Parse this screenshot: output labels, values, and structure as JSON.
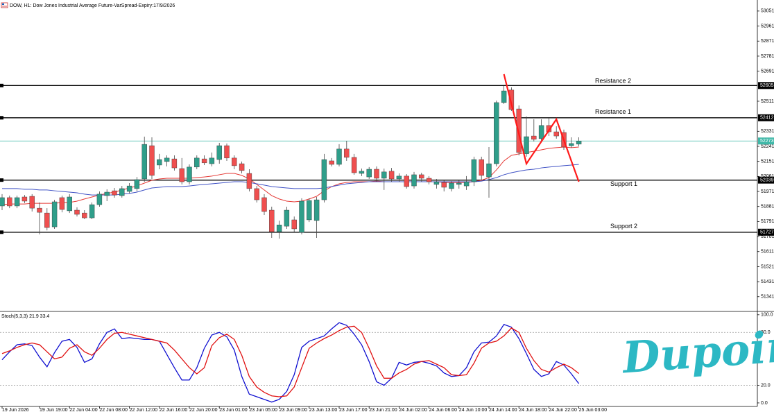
{
  "chart_data": [
    {
      "type": "candlestick",
      "title": "DOW, H1: Dow Jones Industrial Average Future-VarSpread-Expiry:17/9/2026",
      "categories": [
        "19 Jun 2026",
        null,
        null,
        null,
        null,
        "19 Jun 19:00",
        null,
        null,
        null,
        "22 Jun 04:00",
        null,
        null,
        null,
        "22 Jun 08:00",
        null,
        null,
        null,
        "22 Jun 12:00",
        null,
        null,
        null,
        "22 Jun 16:00",
        null,
        null,
        null,
        "22 Jun 20:00",
        null,
        null,
        null,
        "23 Jun 01:00",
        null,
        null,
        null,
        "23 Jun 05:00",
        null,
        null,
        null,
        "23 Jun 09:00",
        null,
        null,
        null,
        "23 Jun 13:00",
        null,
        null,
        null,
        "23 Jun 17:00",
        null,
        null,
        null,
        "23 Jun 21:00",
        null,
        null,
        null,
        "24 Jun 02:00",
        null,
        null,
        null,
        "24 Jun 06:00",
        null,
        null,
        null,
        "24 Jun 10:00",
        null,
        null,
        null,
        "24 Jun 14:00",
        null,
        null,
        null,
        "24 Jun 18:00",
        null,
        null,
        null,
        "24 Jun 22:00",
        null,
        null,
        null,
        "25 Jun 03:00"
      ],
      "open": [
        51884,
        51934,
        51884,
        51938,
        51942,
        51871,
        51842,
        51759,
        51934,
        51855,
        51859,
        51842,
        51813,
        51892,
        51946,
        51975,
        51946,
        51971,
        51988,
        52046,
        52245,
        52129,
        52150,
        52166,
        52108,
        52029,
        52117,
        52166,
        52137,
        52162,
        52245,
        52171,
        52137,
        52079,
        51988,
        51934,
        51859,
        51730,
        51763,
        51801,
        51726,
        51801,
        51797,
        51921,
        52154,
        52133,
        52225,
        52175,
        52079,
        52058,
        52104,
        52050,
        52092,
        52046,
        52063,
        52004,
        52071,
        52050,
        52013,
        52025,
        51988,
        52013,
        52004,
        52029,
        52162,
        52058,
        52137,
        52503,
        52578,
        52465,
        52196,
        52303,
        52287,
        52366,
        52328,
        52324,
        52245,
        52254
      ],
      "high": [
        51955,
        51946,
        51946,
        51950,
        51955,
        51905,
        51871,
        51921,
        51946,
        51955,
        51876,
        51859,
        51905,
        51971,
        51984,
        51992,
        52004,
        52021,
        52058,
        52299,
        52295,
        52196,
        52187,
        52187,
        52171,
        52133,
        52187,
        52187,
        52204,
        52262,
        52258,
        52187,
        52150,
        52104,
        52004,
        51955,
        51880,
        51796,
        51880,
        51821,
        51930,
        51930,
        51938,
        52196,
        52171,
        52254,
        52274,
        52196,
        52108,
        52117,
        52121,
        52108,
        52112,
        52079,
        52075,
        52088,
        52083,
        52063,
        52046,
        52038,
        52033,
        52038,
        52063,
        52179,
        52179,
        52237,
        52515,
        52602,
        52594,
        52486,
        52420,
        52403,
        52403,
        52411,
        52361,
        52341,
        52295,
        52295
      ],
      "low": [
        51859,
        51871,
        51871,
        51901,
        51851,
        51714,
        51738,
        51747,
        51846,
        51842,
        51821,
        51805,
        51805,
        51880,
        51913,
        51934,
        51934,
        51959,
        51971,
        52029,
        52046,
        52104,
        52121,
        52096,
        52013,
        52013,
        52104,
        52129,
        52121,
        52137,
        52154,
        52104,
        52079,
        51971,
        51905,
        51830,
        51693,
        51689,
        51747,
        51730,
        51714,
        51788,
        51693,
        51905,
        52121,
        52121,
        52154,
        52071,
        52063,
        52046,
        52029,
        51980,
        52029,
        52029,
        51988,
        51988,
        52029,
        52013,
        51988,
        51971,
        51971,
        51988,
        51980,
        52004,
        52038,
        51934,
        52121,
        52495,
        52453,
        52187,
        52179,
        52270,
        52270,
        52303,
        52287,
        52220,
        52233,
        52241
      ],
      "close": [
        51934,
        51884,
        51934,
        51913,
        51871,
        51846,
        51755,
        51909,
        51863,
        51938,
        51834,
        51813,
        51892,
        51955,
        51967,
        51950,
        51988,
        52004,
        52042,
        52253,
        52067,
        52162,
        52171,
        52112,
        52029,
        52117,
        52171,
        52142,
        52171,
        52245,
        52171,
        52125,
        52096,
        51988,
        51921,
        51851,
        51730,
        51771,
        51859,
        51747,
        51913,
        51917,
        51921,
        52162,
        52133,
        52225,
        52175,
        52083,
        52092,
        52104,
        52050,
        52088,
        52046,
        52063,
        52000,
        52071,
        52050,
        52029,
        52029,
        51996,
        52021,
        52021,
        52029,
        52162,
        52067,
        52137,
        52503,
        52573,
        52461,
        52204,
        52299,
        52283,
        52366,
        52328,
        52303,
        52237,
        52258,
        52273
      ],
      "up_color": "#2f9e8a",
      "down_color": "#ef4f4f",
      "last_price_color": "#3fb8a8",
      "overlays": [
        {
          "color": "#e53935",
          "values": [
            51892,
            51896,
            51896,
            51896,
            51900,
            51900,
            51900,
            51900,
            51905,
            51905,
            51913,
            51926,
            51938,
            51950,
            51959,
            51967,
            51980,
            51992,
            52004,
            52021,
            52038,
            52046,
            52050,
            52050,
            52050,
            52050,
            52054,
            52058,
            52063,
            52071,
            52079,
            52079,
            52067,
            52046,
            52013,
            51980,
            51946,
            51926,
            51913,
            51909,
            51913,
            51926,
            51942,
            51975,
            52000,
            52017,
            52025,
            52029,
            52029,
            52029,
            52033,
            52029,
            52029,
            52029,
            52029,
            52029,
            52029,
            52029,
            52029,
            52025,
            52025,
            52025,
            52025,
            52029,
            52038,
            52054,
            52100,
            52154,
            52187,
            52196,
            52204,
            52212,
            52220,
            52229,
            52233,
            52237,
            52233,
            52237
          ]
        },
        {
          "color": "#3f51c5",
          "values": [
            51988,
            51988,
            51988,
            51984,
            51984,
            51980,
            51980,
            51975,
            51971,
            51967,
            51963,
            51955,
            51950,
            51950,
            51950,
            51950,
            51955,
            51959,
            51967,
            51980,
            51992,
            51996,
            52000,
            52000,
            52000,
            52004,
            52009,
            52013,
            52017,
            52021,
            52025,
            52029,
            52029,
            52025,
            52017,
            52009,
            52000,
            51996,
            51992,
            51988,
            51988,
            51988,
            51988,
            51992,
            52000,
            52009,
            52017,
            52021,
            52025,
            52029,
            52029,
            52029,
            52029,
            52029,
            52029,
            52029,
            52029,
            52029,
            52029,
            52029,
            52029,
            52029,
            52029,
            52029,
            52033,
            52042,
            52054,
            52071,
            52083,
            52092,
            52100,
            52104,
            52112,
            52117,
            52121,
            52125,
            52129,
            52133
          ]
        }
      ],
      "levels": [
        {
          "label": "Resistance 2",
          "value": 52605
        },
        {
          "label": "Resistance 1",
          "value": 52412
        },
        {
          "label": "Support 1",
          "value": 52039
        },
        {
          "label": "Support 2",
          "value": 51727
        }
      ],
      "drawing": {
        "color": "#ff1a1a",
        "x": [
          67,
          70,
          74,
          77
        ],
        "y": [
          52673,
          52137,
          52403,
          52029
        ]
      },
      "ylim": [
        51257,
        53117
      ],
      "yticks": [
        53051,
        52961,
        52871,
        52781,
        52691,
        52511,
        52331,
        52241,
        52151,
        52061,
        51971,
        51881,
        51791,
        51701,
        51611,
        51521,
        51431,
        51341
      ]
    },
    {
      "type": "line",
      "title": "Stoch(5,3,3)",
      "series": [
        {
          "color": "#1010d0",
          "values": [
            49,
            58,
            66,
            67,
            65,
            52,
            41,
            57,
            70,
            72,
            63,
            46,
            50,
            67,
            80,
            84,
            73,
            74,
            73,
            72,
            72,
            70,
            55,
            40,
            26,
            26,
            40,
            62,
            77,
            80,
            75,
            60,
            30,
            10,
            7,
            4,
            1,
            4,
            13,
            32,
            63,
            70,
            73,
            76,
            84,
            91,
            88,
            78,
            66,
            47,
            24,
            20,
            28,
            46,
            43,
            46,
            47,
            45,
            42,
            34,
            30,
            31,
            40,
            58,
            68,
            69,
            76,
            89,
            86,
            73,
            56,
            38,
            30,
            33,
            47,
            43,
            33,
            21.9
          ]
        },
        {
          "color": "#e01010",
          "values": [
            56,
            59,
            63,
            66,
            68,
            66,
            58,
            50,
            52,
            62,
            66,
            58,
            54,
            62,
            72,
            79,
            80,
            78,
            76,
            74,
            72,
            70,
            68,
            60,
            50,
            40,
            33,
            40,
            65,
            74,
            78,
            72,
            54,
            30,
            18,
            12,
            8,
            7,
            8,
            18,
            40,
            62,
            68,
            73,
            77,
            82,
            86,
            87,
            80,
            62,
            42,
            28,
            28,
            34,
            38,
            44,
            47,
            48,
            44,
            40,
            32,
            31,
            32,
            45,
            62,
            68,
            70,
            76,
            85,
            80,
            62,
            48,
            38,
            35,
            40,
            44,
            40,
            33.4
          ]
        }
      ],
      "ylim": [
        -4,
        103
      ],
      "yticks": [
        {
          "value": 100,
          "label": "100.0"
        },
        {
          "value": 80,
          "label": "80.0"
        },
        {
          "value": 20,
          "label": "20.0"
        },
        {
          "value": 0,
          "label": "0.0"
        }
      ]
    }
  ],
  "watermark": "Dupoin"
}
